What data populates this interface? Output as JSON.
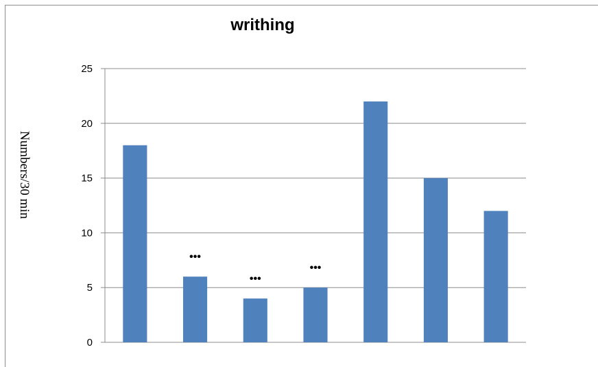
{
  "chart_data": {
    "type": "bar",
    "title": "writhing",
    "xlabel": "",
    "ylabel": "Numbers/30 min",
    "ylim": [
      0,
      25
    ],
    "yticks": [
      0,
      5,
      10,
      15,
      20,
      25
    ],
    "grid": true,
    "legend": "none",
    "bar_color": "#4f81bd",
    "values": [
      18,
      6,
      4,
      5,
      22,
      15,
      12
    ],
    "annotations": [
      "",
      "•••",
      "•••",
      "•••",
      "",
      "",
      ""
    ]
  }
}
